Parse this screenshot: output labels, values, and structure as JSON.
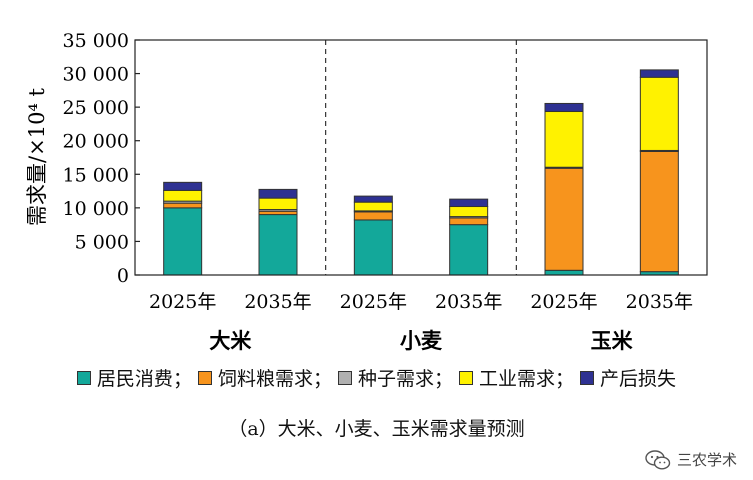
{
  "chart_data": {
    "type": "bar",
    "stacked": true,
    "title": "",
    "caption": "（a）大米、小麦、玉米需求量预测",
    "ylabel": "需求量/×10⁴ t",
    "ylim": [
      0,
      35000
    ],
    "yticks": [
      0,
      5000,
      10000,
      15000,
      20000,
      25000,
      30000,
      35000
    ],
    "ytick_labels": [
      "0",
      "5 000",
      "10 000",
      "15 000",
      "20 000",
      "25 000",
      "30 000",
      "35 000"
    ],
    "groups": [
      "大米",
      "小麦",
      "玉米"
    ],
    "categories": [
      "2025年",
      "2035年",
      "2025年",
      "2035年",
      "2025年",
      "2035年"
    ],
    "category_group": [
      0,
      0,
      1,
      1,
      2,
      2
    ],
    "series": [
      {
        "name": "居民消费",
        "color": "#13a89a",
        "values": [
          10000,
          9000,
          8200,
          7500,
          700,
          500
        ]
      },
      {
        "name": "饲料粮需求",
        "color": "#f7941d",
        "values": [
          700,
          500,
          1200,
          1000,
          15200,
          17900
        ]
      },
      {
        "name": "种子需求",
        "color": "#b0b0b0",
        "values": [
          300,
          250,
          150,
          200,
          150,
          150
        ]
      },
      {
        "name": "工业需求",
        "color": "#fff200",
        "values": [
          1600,
          1700,
          1300,
          1500,
          8300,
          10900
        ]
      },
      {
        "name": "产后损失",
        "color": "#2e3192",
        "values": [
          1200,
          1300,
          900,
          1100,
          1200,
          1100
        ]
      }
    ],
    "legend_position": "bottom",
    "grid": false,
    "group_separators": "dashed"
  },
  "legend_separator": "；",
  "watermark": {
    "text": "三农学术",
    "icon": "wechat-icon"
  }
}
